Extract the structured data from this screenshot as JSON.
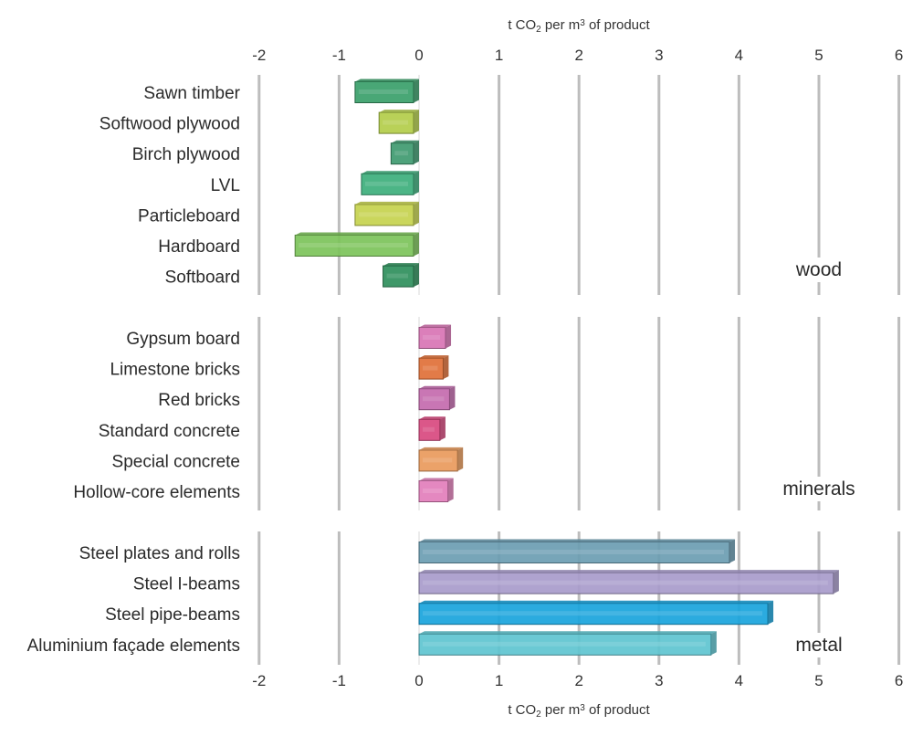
{
  "chart_data": {
    "type": "bar",
    "orientation": "horizontal",
    "title": "",
    "xlabel_top": "t CO₂ per m³ of product",
    "xlabel_bottom": "t CO₂ per m³ of product",
    "xlim": [
      -2,
      6
    ],
    "xticks": [
      -2,
      -1,
      0,
      1,
      2,
      3,
      4,
      5,
      6
    ],
    "grid": true,
    "groups": [
      {
        "name": "wood",
        "items": [
          {
            "label": "Sawn timber",
            "value": -0.8,
            "color": "#3a9f6a"
          },
          {
            "label": "Softwood plywood",
            "value": -0.5,
            "color": "#b3cd4a"
          },
          {
            "label": "Birch plywood",
            "value": -0.35,
            "color": "#3f9a70"
          },
          {
            "label": "LVL",
            "value": -0.72,
            "color": "#3daf7c"
          },
          {
            "label": "Particleboard",
            "value": -0.8,
            "color": "#c6d24e"
          },
          {
            "label": "Hardboard",
            "value": -1.55,
            "color": "#7cc35a"
          },
          {
            "label": "Softboard",
            "value": -0.45,
            "color": "#2f8f5c"
          }
        ]
      },
      {
        "name": "minerals",
        "items": [
          {
            "label": "Gypsum board",
            "value": 0.4,
            "color": "#d874b4"
          },
          {
            "label": "Limestone bricks",
            "value": 0.37,
            "color": "#e07038"
          },
          {
            "label": "Red bricks",
            "value": 0.45,
            "color": "#c46aae"
          },
          {
            "label": "Standard concrete",
            "value": 0.33,
            "color": "#d8497f"
          },
          {
            "label": "Special concrete",
            "value": 0.55,
            "color": "#e99a5c"
          },
          {
            "label": "Hollow-core elements",
            "value": 0.43,
            "color": "#e27ebb"
          }
        ]
      },
      {
        "name": "metal",
        "items": [
          {
            "label": "Steel plates and rolls",
            "value": 3.95,
            "color": "#6b9db2"
          },
          {
            "label": "Steel I-beams",
            "value": 5.25,
            "color": "#a89bcb"
          },
          {
            "label": "Steel pipe-beams",
            "value": 4.43,
            "color": "#19a4dc"
          },
          {
            "label": "Aluminium façade elements",
            "value": 3.72,
            "color": "#5ec4d0"
          }
        ]
      }
    ]
  }
}
